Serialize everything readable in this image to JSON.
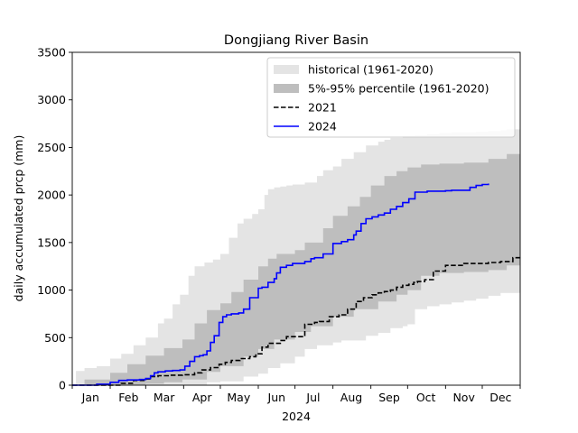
{
  "chart_data": {
    "type": "area",
    "title": "Dongjiang River Basin",
    "xlabel": "2024",
    "ylabel": "daily accumulated prcp (mm)",
    "xlim": [
      0,
      366
    ],
    "ylim": [
      0,
      3500
    ],
    "yticks": [
      0,
      500,
      1000,
      1500,
      2000,
      2500,
      3000,
      3500
    ],
    "month_ticks": [
      {
        "label": "Jan",
        "day": 15
      },
      {
        "label": "Feb",
        "day": 46
      },
      {
        "label": "Mar",
        "day": 75
      },
      {
        "label": "Apr",
        "day": 106
      },
      {
        "label": "May",
        "day": 136
      },
      {
        "label": "Jun",
        "day": 167
      },
      {
        "label": "Jul",
        "day": 197
      },
      {
        "label": "Aug",
        "day": 228
      },
      {
        "label": "Sep",
        "day": 259
      },
      {
        "label": "Oct",
        "day": 289
      },
      {
        "label": "Nov",
        "day": 320
      },
      {
        "label": "Dec",
        "day": 350
      }
    ],
    "month_boundaries": [
      0,
      31,
      60,
      91,
      121,
      152,
      182,
      213,
      244,
      274,
      305,
      335,
      366
    ],
    "legend_position": "upper-right",
    "legend": [
      {
        "label": "historical (1961-2020)",
        "kind": "patch",
        "color": "#e4e4e4"
      },
      {
        "label": "5%-95% percentile (1961-2020)",
        "kind": "patch",
        "color": "#bebebe"
      },
      {
        "label": "2021",
        "kind": "dashed",
        "color": "#000000"
      },
      {
        "label": "2024",
        "kind": "line",
        "color": "#0000ff"
      }
    ],
    "series": [
      {
        "id": "hist_max",
        "x": [
          0,
          3,
          10,
          20,
          31,
          40,
          50,
          60,
          70,
          75,
          82,
          88,
          95,
          100,
          108,
          115,
          121,
          128,
          135,
          140,
          147,
          152,
          157,
          160,
          165,
          170,
          175,
          180,
          190,
          200,
          205,
          213,
          220,
          230,
          240,
          250,
          255,
          260,
          270,
          280,
          290,
          300,
          310,
          320,
          330,
          340,
          350,
          355,
          366
        ],
        "y": [
          0,
          150,
          180,
          200,
          280,
          330,
          420,
          500,
          650,
          700,
          850,
          950,
          1150,
          1250,
          1290,
          1320,
          1380,
          1550,
          1700,
          1750,
          1800,
          1850,
          2000,
          2060,
          2080,
          2090,
          2100,
          2110,
          2130,
          2200,
          2260,
          2300,
          2380,
          2450,
          2520,
          2560,
          2580,
          2600,
          2620,
          2630,
          2640,
          2650,
          2660,
          2660,
          2665,
          2670,
          2680,
          2690,
          2700
        ]
      },
      {
        "id": "hist_min",
        "x": [
          0,
          40,
          75,
          90,
          110,
          121,
          140,
          152,
          160,
          170,
          182,
          190,
          200,
          213,
          220,
          240,
          250,
          260,
          270,
          274,
          280,
          290,
          300,
          310,
          320,
          330,
          340,
          350,
          366
        ],
        "y": [
          0,
          0,
          0,
          5,
          30,
          40,
          90,
          120,
          180,
          230,
          300,
          380,
          420,
          450,
          470,
          520,
          550,
          600,
          620,
          640,
          800,
          830,
          850,
          870,
          890,
          910,
          940,
          970,
          1000
        ]
      },
      {
        "id": "p95",
        "x": [
          0,
          10,
          31,
          45,
          60,
          75,
          90,
          100,
          110,
          121,
          130,
          140,
          152,
          160,
          167,
          182,
          190,
          205,
          213,
          225,
          235,
          244,
          255,
          265,
          274,
          285,
          300,
          320,
          340,
          355,
          366
        ],
        "y": [
          0,
          60,
          130,
          220,
          310,
          390,
          480,
          650,
          790,
          860,
          980,
          1110,
          1250,
          1330,
          1380,
          1420,
          1500,
          1650,
          1780,
          1880,
          1980,
          2100,
          2200,
          2250,
          2290,
          2320,
          2330,
          2340,
          2380,
          2430,
          2440
        ]
      },
      {
        "id": "p5",
        "x": [
          0,
          40,
          60,
          75,
          90,
          110,
          121,
          140,
          152,
          165,
          182,
          195,
          213,
          230,
          250,
          265,
          274,
          285,
          300,
          320,
          340,
          355,
          366
        ],
        "y": [
          0,
          5,
          15,
          30,
          60,
          140,
          200,
          300,
          380,
          480,
          560,
          620,
          720,
          800,
          880,
          950,
          1000,
          1150,
          1180,
          1190,
          1210,
          1260,
          1290
        ]
      },
      {
        "name": "2021",
        "id": "y2021",
        "style": "dashed",
        "color": "#000000",
        "x": [
          0,
          20,
          31,
          40,
          50,
          60,
          64,
          70,
          76,
          80,
          90,
          100,
          106,
          113,
          120,
          125,
          130,
          137,
          145,
          150,
          155,
          160,
          170,
          175,
          180,
          190,
          198,
          202,
          210,
          218,
          225,
          232,
          238,
          245,
          250,
          255,
          260,
          265,
          270,
          275,
          279,
          282,
          288,
          295,
          305,
          320,
          340,
          350,
          355,
          360,
          366
        ],
        "y": [
          0,
          0,
          0,
          20,
          50,
          65,
          90,
          100,
          100,
          105,
          110,
          130,
          160,
          185,
          220,
          240,
          260,
          280,
          300,
          330,
          400,
          440,
          470,
          510,
          510,
          640,
          660,
          670,
          720,
          740,
          800,
          880,
          920,
          950,
          970,
          985,
          1000,
          1030,
          1050,
          1060,
          1080,
          1090,
          1110,
          1200,
          1260,
          1280,
          1290,
          1300,
          1300,
          1340,
          1340
        ]
      },
      {
        "name": "2024",
        "id": "y2024",
        "style": "solid",
        "color": "#0000ff",
        "x": [
          0,
          15,
          20,
          31,
          38,
          45,
          55,
          60,
          64,
          67,
          70,
          76,
          82,
          88,
          92,
          96,
          100,
          104,
          107,
          110,
          113,
          116,
          120,
          123,
          126,
          130,
          136,
          140,
          145,
          152,
          155,
          160,
          165,
          167,
          170,
          175,
          180,
          190,
          195,
          198,
          205,
          213,
          220,
          225,
          230,
          232,
          236,
          240,
          245,
          250,
          255,
          260,
          265,
          270,
          275,
          280,
          290,
          300,
          305,
          310,
          320,
          325,
          330,
          335,
          340
        ],
        "y": [
          0,
          0,
          10,
          30,
          50,
          55,
          60,
          70,
          100,
          130,
          140,
          150,
          155,
          160,
          200,
          250,
          300,
          310,
          320,
          360,
          450,
          520,
          660,
          720,
          740,
          750,
          760,
          800,
          920,
          1020,
          1030,
          1080,
          1120,
          1180,
          1240,
          1260,
          1280,
          1300,
          1330,
          1340,
          1380,
          1490,
          1510,
          1530,
          1580,
          1620,
          1700,
          1750,
          1770,
          1790,
          1810,
          1850,
          1880,
          1920,
          1960,
          2030,
          2040,
          2040,
          2045,
          2050,
          2050,
          2080,
          2100,
          2110,
          2120
        ]
      }
    ]
  }
}
